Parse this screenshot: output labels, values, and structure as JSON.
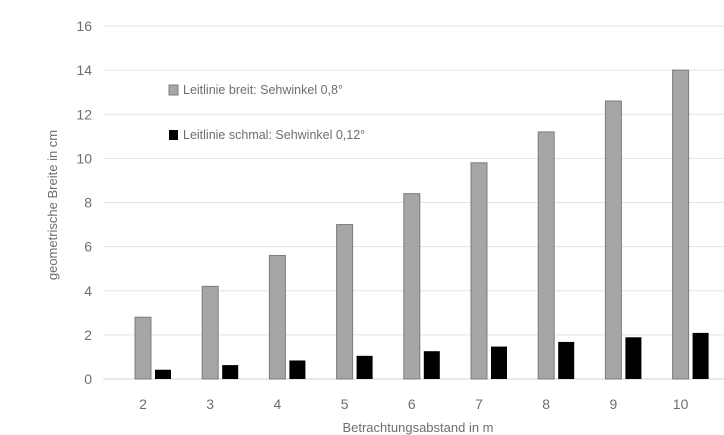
{
  "chart_data": {
    "type": "bar",
    "xlabel": "Betrachtungsabstand in m",
    "ylabel": "geometrische Breite in cm",
    "categories": [
      "2",
      "3",
      "4",
      "5",
      "6",
      "7",
      "8",
      "9",
      "10"
    ],
    "ylim": [
      0,
      16
    ],
    "yticks": [
      "0",
      "2",
      "4",
      "6",
      "8",
      "10",
      "12",
      "14",
      "16"
    ],
    "grid": true,
    "legend_position": "top-left",
    "series": [
      {
        "name": "Leitlinie breit: Sehwinkel 0,8°",
        "color": "#a6a6a6",
        "values": [
          2.8,
          4.2,
          5.6,
          7.0,
          8.4,
          9.8,
          11.2,
          12.6,
          14.0
        ]
      },
      {
        "name": "Leitlinie schmal: Sehwinkel 0,12°",
        "color": "#000000",
        "values": [
          0.42,
          0.63,
          0.84,
          1.05,
          1.26,
          1.47,
          1.68,
          1.89,
          2.09
        ]
      }
    ]
  }
}
